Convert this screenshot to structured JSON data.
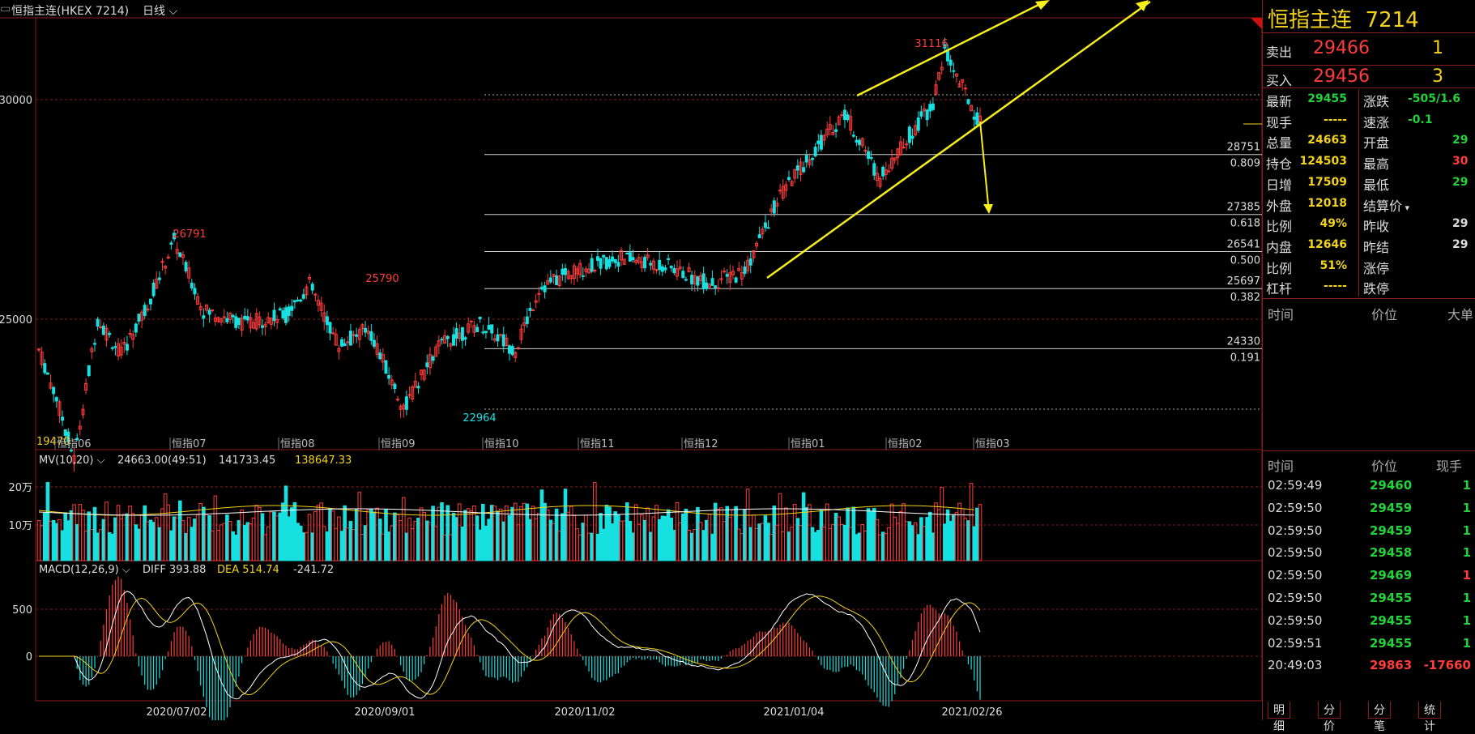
{
  "header": {
    "symbol_label": "恒指主连(HKEX 7214)",
    "period_label": "日线"
  },
  "price_axis": {
    "labels": [
      "30000",
      "25000"
    ]
  },
  "volume_axis": {
    "labels": [
      "20万",
      "10万"
    ]
  },
  "macd_axis": {
    "labels": [
      "500",
      "0"
    ]
  },
  "time_axis": {
    "labels": [
      "2020/07/02",
      "2020/09/01",
      "2020/11/02",
      "2021/01/04",
      "2021/02/26"
    ]
  },
  "month_labels": [
    "恒指06",
    "恒指07",
    "恒指08",
    "恒指09",
    "恒指10",
    "恒指11",
    "恒指12",
    "恒指01",
    "恒指02",
    "恒指03"
  ],
  "annotations": {
    "high_26791": "26791",
    "high_25790": "25790",
    "low_22964": "22964",
    "high_31116": "31116",
    "low_19470": "19470"
  },
  "fibonacci": [
    {
      "price": "28751",
      "ratio": "0.809"
    },
    {
      "price": "27385",
      "ratio": "0.618"
    },
    {
      "price": "26541",
      "ratio": "0.500"
    },
    {
      "price": "25697",
      "ratio": "0.382"
    },
    {
      "price": "24330",
      "ratio": "0.191"
    }
  ],
  "indicators": {
    "mv_label": "MV(10,20)",
    "mv_values": [
      "24663.00(49:51)",
      "141733.45",
      "138647.33"
    ],
    "macd_label": "MACD(12,26,9)",
    "diff": "DIFF 393.88",
    "dea": "DEA 514.74",
    "macd": "-241.72"
  },
  "chart_data": {
    "type": "candlestick",
    "price_ticks": [
      30000,
      25000
    ],
    "fib_levels": [
      28751,
      27385,
      26541,
      25697,
      24330
    ],
    "fib_ratios": [
      0.809,
      0.618,
      0.5,
      0.382,
      0.191
    ],
    "key_points": {
      "low_jun": 19470,
      "high_jul": 26791,
      "high_sep": 25790,
      "low_oct": 22964,
      "high_feb": 31116
    },
    "last_price": 29455,
    "volume_ticks": [
      "20万",
      "10万"
    ],
    "macd_ticks": [
      500,
      0
    ],
    "macd_last": {
      "diff": 393.88,
      "dea": 514.74,
      "macd": -241.72
    }
  },
  "quote": {
    "title_name": "恒指主连",
    "title_code": "7214",
    "sell_label": "卖出",
    "sell_price": "29466",
    "sell_qty": "1",
    "buy_label": "买入",
    "buy_price": "29456",
    "buy_qty": "3",
    "left": [
      {
        "label": "最新",
        "value": "29455",
        "color": "green"
      },
      {
        "label": "现手",
        "value": "-----",
        "color": "yellow"
      },
      {
        "label": "总量",
        "value": "24663",
        "color": "yellow"
      },
      {
        "label": "持仓",
        "value": "124503",
        "color": "yellow"
      },
      {
        "label": "日增",
        "value": "17509",
        "color": "yellow"
      },
      {
        "label": "外盘",
        "value": "12018",
        "color": "yellow"
      },
      {
        "label": "比例",
        "value": "49%",
        "color": "yellow"
      },
      {
        "label": "内盘",
        "value": "12646",
        "color": "yellow"
      },
      {
        "label": "比例",
        "value": "51%",
        "color": "yellow"
      },
      {
        "label": "杠杆",
        "value": "-----",
        "color": "yellow"
      }
    ],
    "right": [
      {
        "label": "涨跌",
        "value": "-505/1.6",
        "color": "green"
      },
      {
        "label": "速涨",
        "value": "-0.1",
        "color": "green"
      },
      {
        "label": "开盘",
        "value": "29",
        "color": "green"
      },
      {
        "label": "最高",
        "value": "30",
        "color": "red"
      },
      {
        "label": "最低",
        "value": "29",
        "color": "green"
      },
      {
        "label": "结算价",
        "value": "",
        "color": "white"
      },
      {
        "label": "昨收",
        "value": "29",
        "color": "white"
      },
      {
        "label": "昨结",
        "value": "29",
        "color": "white"
      },
      {
        "label": "涨停",
        "value": "",
        "color": "white"
      },
      {
        "label": "跌停",
        "value": "",
        "color": "white"
      }
    ]
  },
  "big_orders": {
    "col_time": "时间",
    "col_price": "价位",
    "col_big": "大单"
  },
  "ticks": {
    "col_time": "时间",
    "col_price": "价位",
    "col_qty": "现手",
    "rows": [
      {
        "time": "02:59:49",
        "price": "29460",
        "qty": "1",
        "qcolor": "green"
      },
      {
        "time": "02:59:50",
        "price": "29459",
        "qty": "1",
        "qcolor": "green"
      },
      {
        "time": "02:59:50",
        "price": "29459",
        "qty": "1",
        "qcolor": "green"
      },
      {
        "time": "02:59:50",
        "price": "29458",
        "qty": "1",
        "qcolor": "green"
      },
      {
        "time": "02:59:50",
        "price": "29469",
        "qty": "1",
        "qcolor": "red"
      },
      {
        "time": "02:59:50",
        "price": "29455",
        "qty": "1",
        "qcolor": "green"
      },
      {
        "time": "02:59:50",
        "price": "29455",
        "qty": "1",
        "qcolor": "green"
      },
      {
        "time": "02:59:51",
        "price": "29455",
        "qty": "1",
        "qcolor": "green"
      },
      {
        "time": "20:49:03",
        "price": "29863",
        "qty": "-17660",
        "qcolor": "red"
      }
    ]
  },
  "tabs": [
    "明细",
    "分价",
    "分笔",
    "统计"
  ],
  "colors": {
    "up": "#ff3b3b",
    "down": "#17e0e0",
    "grid": "#8b1a1a",
    "trend": "#f7ee1a"
  }
}
